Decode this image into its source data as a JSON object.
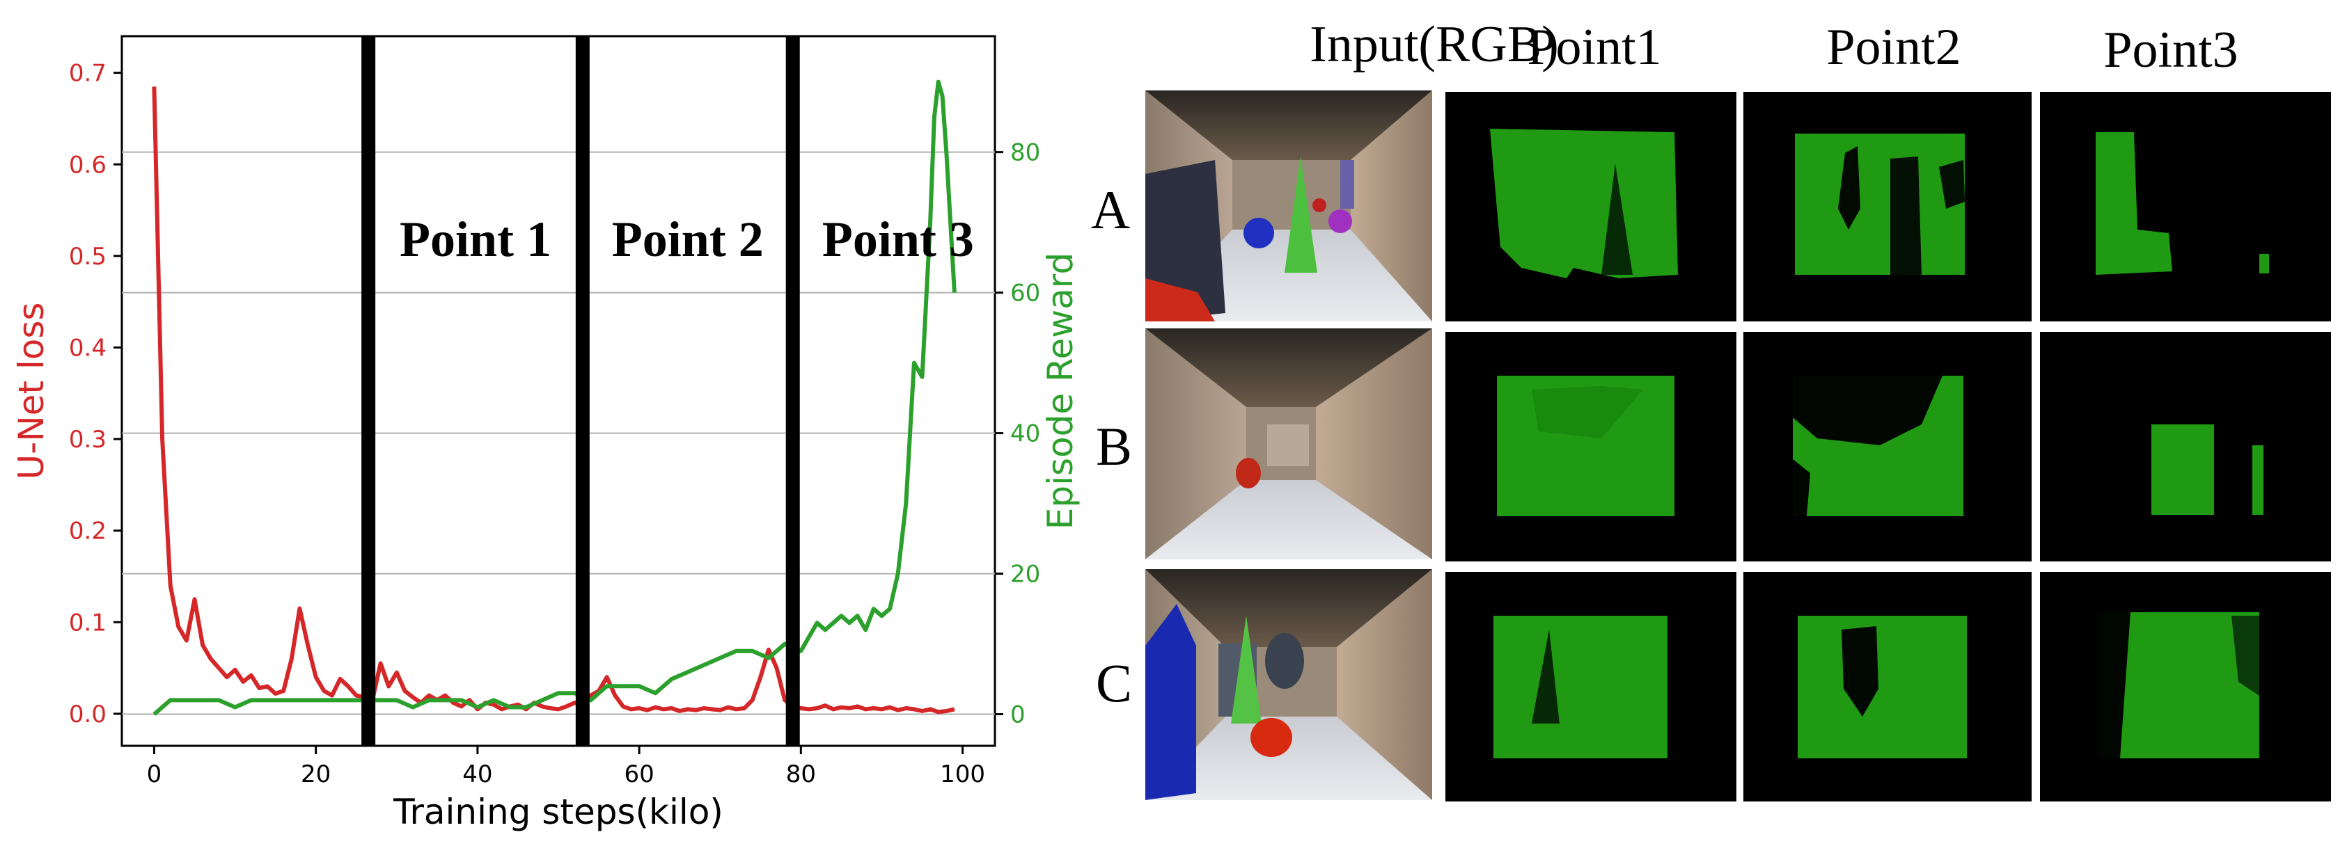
{
  "chart_data": {
    "type": "line",
    "xlabel": "Training steps(kilo)",
    "ylabel_left": "U-Net loss",
    "ylabel_right": "Episode Reward",
    "xlim": [
      -4,
      104
    ],
    "ylim_left": [
      -0.035,
      0.74
    ],
    "ylim_right": [
      -4.5,
      96.5
    ],
    "x_ticks": [
      0,
      20,
      40,
      60,
      80,
      100
    ],
    "x_tick_labels": [
      "0",
      "20",
      "40",
      "60",
      "80",
      "100"
    ],
    "y_left_ticks": [
      0.0,
      0.1,
      0.2,
      0.3,
      0.4,
      0.5,
      0.6,
      0.7
    ],
    "y_left_tick_labels": [
      "0.0",
      "0.1",
      "0.2",
      "0.3",
      "0.4",
      "0.5",
      "0.6",
      "0.7"
    ],
    "y_right_ticks": [
      0,
      20,
      40,
      60,
      80
    ],
    "y_right_tick_labels": [
      "0",
      "20",
      "40",
      "60",
      "80"
    ],
    "colors": {
      "loss": "#d62728",
      "reward": "#2ca02c",
      "axis": "#000000",
      "grid": "#b0b0b0"
    },
    "series": [
      {
        "name": "U-Net loss",
        "axis": "left",
        "x": [
          0,
          1,
          2,
          3,
          4,
          5,
          6,
          7,
          8,
          9,
          10,
          11,
          12,
          13,
          14,
          15,
          16,
          17,
          18,
          19,
          20,
          21,
          22,
          23,
          24,
          25,
          26,
          27,
          28,
          29,
          30,
          31,
          32,
          33,
          34,
          35,
          36,
          37,
          38,
          39,
          40,
          41,
          42,
          43,
          44,
          45,
          46,
          47,
          48,
          49,
          50,
          51,
          52,
          53,
          54,
          55,
          56,
          57,
          58,
          59,
          60,
          61,
          62,
          63,
          64,
          65,
          66,
          67,
          68,
          69,
          70,
          71,
          72,
          73,
          74,
          75,
          76,
          77,
          78,
          79,
          80,
          81,
          82,
          83,
          84,
          85,
          86,
          87,
          88,
          89,
          90,
          91,
          92,
          93,
          94,
          95,
          96,
          97,
          98,
          99
        ],
        "values": [
          0.685,
          0.3,
          0.14,
          0.095,
          0.08,
          0.125,
          0.075,
          0.06,
          0.05,
          0.04,
          0.048,
          0.035,
          0.042,
          0.028,
          0.03,
          0.022,
          0.025,
          0.06,
          0.115,
          0.075,
          0.04,
          0.025,
          0.02,
          0.038,
          0.03,
          0.02,
          0.018,
          0.015,
          0.055,
          0.03,
          0.045,
          0.025,
          0.018,
          0.012,
          0.02,
          0.015,
          0.02,
          0.012,
          0.008,
          0.015,
          0.005,
          0.012,
          0.01,
          0.005,
          0.008,
          0.01,
          0.005,
          0.012,
          0.008,
          0.006,
          0.005,
          0.008,
          0.012,
          0.01,
          0.02,
          0.025,
          0.04,
          0.02,
          0.008,
          0.005,
          0.006,
          0.004,
          0.007,
          0.005,
          0.006,
          0.003,
          0.005,
          0.004,
          0.006,
          0.005,
          0.004,
          0.007,
          0.005,
          0.006,
          0.015,
          0.04,
          0.07,
          0.05,
          0.015,
          0.008,
          0.006,
          0.005,
          0.006,
          0.009,
          0.005,
          0.007,
          0.006,
          0.008,
          0.005,
          0.006,
          0.005,
          0.007,
          0.004,
          0.006,
          0.005,
          0.003,
          0.005,
          0.002,
          0.003,
          0.005
        ]
      },
      {
        "name": "Episode Reward",
        "axis": "right",
        "x": [
          0,
          2,
          4,
          6,
          8,
          10,
          12,
          14,
          16,
          18,
          20,
          22,
          24,
          26,
          28,
          30,
          32,
          34,
          36,
          38,
          40,
          42,
          44,
          46,
          48,
          50,
          52,
          54,
          56,
          58,
          60,
          62,
          64,
          66,
          68,
          70,
          72,
          74,
          76,
          78,
          80,
          81,
          82,
          83,
          84,
          85,
          86,
          87,
          88,
          89,
          90,
          91,
          92,
          93,
          94,
          95,
          96,
          96.5,
          97,
          97.5,
          98,
          98.5,
          99
        ],
        "values": [
          0,
          2,
          2,
          2,
          2,
          1,
          2,
          2,
          2,
          2,
          2,
          2,
          2,
          2,
          2,
          2,
          1,
          2,
          2,
          2,
          1,
          2,
          1,
          1,
          2,
          3,
          3,
          2,
          4,
          4,
          4,
          3,
          5,
          6,
          7,
          8,
          9,
          9,
          8,
          10,
          9,
          11,
          13,
          12,
          13,
          14,
          13,
          14,
          12,
          15,
          14,
          15,
          20,
          30,
          50,
          48,
          70,
          85,
          90,
          88,
          80,
          70,
          60
        ]
      }
    ],
    "annotations": [
      "Point 1",
      "Point 2",
      "Point 3"
    ],
    "divider_x": [
      26.5,
      53,
      79
    ]
  },
  "figure": {
    "col_headers": [
      "Input(RGB)",
      "Point1",
      "Point2",
      "Point3"
    ],
    "row_labels": [
      "A",
      "B",
      "C"
    ]
  }
}
